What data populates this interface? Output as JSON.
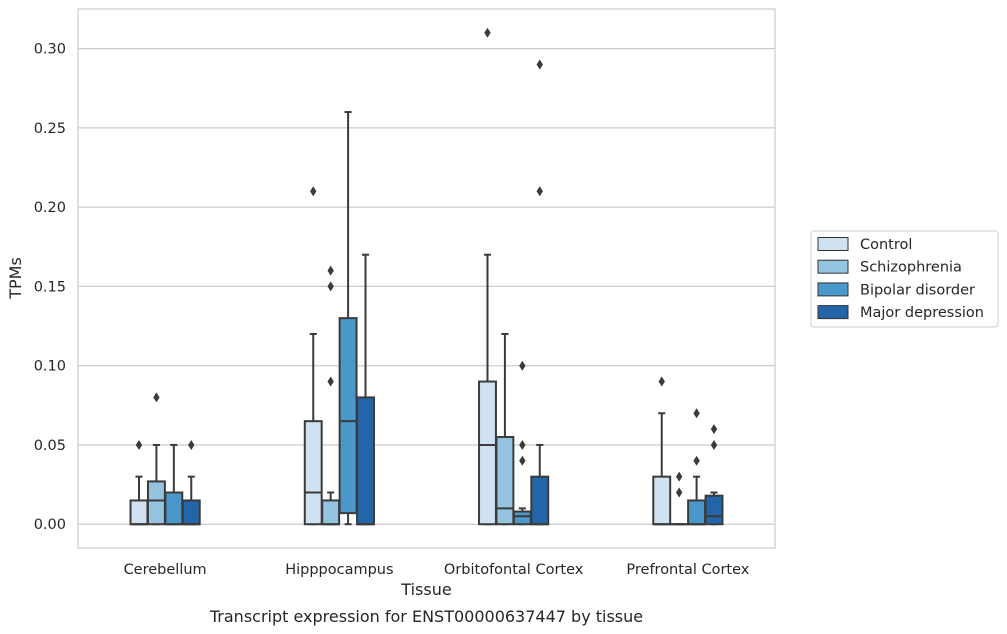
{
  "chart_data": {
    "type": "box",
    "caption": "Transcript expression for ENST00000637447 by tissue",
    "xlabel": "Tissue",
    "ylabel": "TPMs",
    "ylim": [
      -0.015,
      0.325
    ],
    "yticks": [
      "0.00",
      "0.05",
      "0.10",
      "0.15",
      "0.20",
      "0.25",
      "0.30"
    ],
    "grid": "horizontal",
    "legend_position": "right",
    "categories": [
      "Cerebellum",
      "Hipppocampus",
      "Orbitofontal Cortex",
      "Prefrontal Cortex"
    ],
    "series": [
      {
        "name": "Control",
        "color": "#d0e1f2",
        "boxes": [
          {
            "whisker_low": 0,
            "q1": 0,
            "median": 0,
            "q3": 0.015,
            "whisker_high": 0.03,
            "outliers": [
              0.05
            ]
          },
          {
            "whisker_low": 0,
            "q1": 0,
            "median": 0.02,
            "q3": 0.065,
            "whisker_high": 0.12,
            "outliers": [
              0.21
            ]
          },
          {
            "whisker_low": 0,
            "q1": 0,
            "median": 0.05,
            "q3": 0.09,
            "whisker_high": 0.17,
            "outliers": [
              0.31
            ]
          },
          {
            "whisker_low": 0,
            "q1": 0,
            "median": 0,
            "q3": 0.03,
            "whisker_high": 0.07,
            "outliers": [
              0.09
            ]
          }
        ]
      },
      {
        "name": "Schizophrenia",
        "color": "#94c4df",
        "boxes": [
          {
            "whisker_low": 0,
            "q1": 0,
            "median": 0.015,
            "q3": 0.027,
            "whisker_high": 0.05,
            "outliers": [
              0.08
            ]
          },
          {
            "whisker_low": 0,
            "q1": 0,
            "median": 0,
            "q3": 0.015,
            "whisker_high": 0.02,
            "outliers": [
              0.09,
              0.15,
              0.16
            ]
          },
          {
            "whisker_low": 0,
            "q1": 0,
            "median": 0.01,
            "q3": 0.055,
            "whisker_high": 0.12,
            "outliers": []
          },
          {
            "whisker_low": 0,
            "q1": 0,
            "median": 0,
            "q3": 0,
            "whisker_high": 0,
            "outliers": [
              0.02,
              0.03
            ]
          }
        ]
      },
      {
        "name": "Bipolar disorder",
        "color": "#4a98c9",
        "boxes": [
          {
            "whisker_low": 0,
            "q1": 0,
            "median": 0,
            "q3": 0.02,
            "whisker_high": 0.05,
            "outliers": []
          },
          {
            "whisker_low": 0,
            "q1": 0.007,
            "median": 0.065,
            "q3": 0.13,
            "whisker_high": 0.26,
            "outliers": []
          },
          {
            "whisker_low": 0,
            "q1": 0,
            "median": 0.005,
            "q3": 0.008,
            "whisker_high": 0.01,
            "outliers": [
              0.04,
              0.05,
              0.1
            ]
          },
          {
            "whisker_low": 0,
            "q1": 0,
            "median": 0,
            "q3": 0.015,
            "whisker_high": 0.03,
            "outliers": [
              0.04,
              0.07
            ]
          }
        ]
      },
      {
        "name": "Major depression",
        "color": "#2365a8",
        "boxes": [
          {
            "whisker_low": 0,
            "q1": 0,
            "median": 0,
            "q3": 0.015,
            "whisker_high": 0.03,
            "outliers": [
              0.05
            ]
          },
          {
            "whisker_low": 0,
            "q1": 0,
            "median": 0,
            "q3": 0.08,
            "whisker_high": 0.17,
            "outliers": []
          },
          {
            "whisker_low": 0,
            "q1": 0,
            "median": 0,
            "q3": 0.03,
            "whisker_high": 0.05,
            "outliers": [
              0.21,
              0.29
            ]
          },
          {
            "whisker_low": 0,
            "q1": 0,
            "median": 0.005,
            "q3": 0.018,
            "whisker_high": 0.02,
            "outliers": [
              0.05,
              0.06
            ]
          }
        ]
      }
    ]
  }
}
